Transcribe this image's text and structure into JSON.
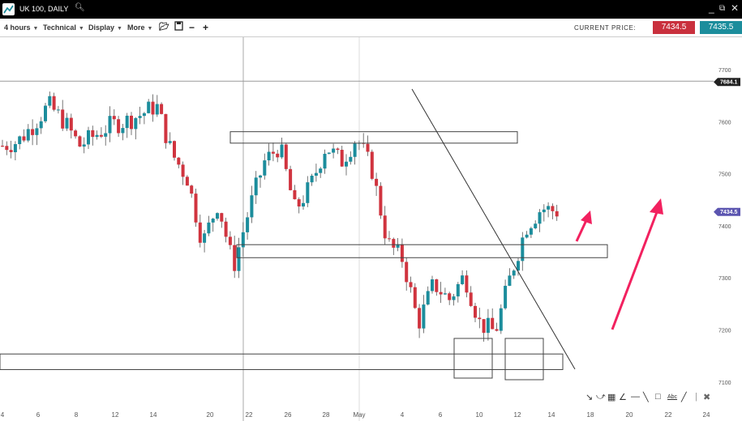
{
  "window": {
    "title": "UK 100, DAILY",
    "search_icon": "magnifier-icon",
    "controls": [
      "minimize-icon",
      "popout-icon",
      "close-icon"
    ]
  },
  "toolbar": {
    "menus": [
      "4 hours",
      "Technical",
      "Display",
      "More"
    ],
    "icons": [
      "open-folder-icon",
      "save-icon",
      "zoom-out-icon",
      "zoom-in-icon"
    ],
    "current_price_label": "CURRENT PRICE:",
    "sell_price": "7434.5",
    "buy_price": "7435.5",
    "sell_color": "#c9303d",
    "buy_color": "#1c8d9c"
  },
  "chart_data": {
    "type": "candlestick",
    "y_ticks": [
      "7700",
      "7600",
      "7500",
      "7400",
      "7300",
      "7200",
      "7100"
    ],
    "ylim": [
      7060,
      7760
    ],
    "x_ticks": [
      "4",
      "6",
      "8",
      "12",
      "14",
      "20",
      "22",
      "26",
      "28",
      "May",
      "4",
      "6",
      "10",
      "12",
      "14",
      "18",
      "20",
      "22",
      "24"
    ],
    "price_tags": [
      {
        "label": "7684.1",
        "value": 7684.1,
        "color": "#222222"
      },
      {
        "label": "7434.5",
        "value": 7434.5,
        "color": "#5b55b0"
      }
    ],
    "close_path": [
      7560,
      7568,
      7600,
      7638,
      7607,
      7560,
      7580,
      7599,
      7607,
      7620,
      7638,
      7545,
      7498,
      7373,
      7451,
      7327,
      7436,
      7529,
      7560,
      7436,
      7482,
      7560,
      7529,
      7576,
      7513,
      7373,
      7342,
      7218,
      7295,
      7264,
      7311,
      7218,
      7202,
      7311,
      7404,
      7440,
      7434
    ],
    "up_color": "#1c8d9c",
    "down_color": "#d0343f",
    "drawings": {
      "horizontal_line": 7684.1,
      "zones": [
        [
          7587,
          7565
        ],
        [
          7370,
          7345
        ],
        [
          7160,
          7130
        ]
      ],
      "arrow_color": "#f2215f"
    }
  },
  "drawing_tools": [
    "pointer-icon",
    "curve-icon",
    "fibonacci-icon",
    "fan-icon",
    "horizontal-line-icon",
    "trend-line-icon",
    "rectangle-icon",
    "text-icon",
    "line-icon",
    "separator",
    "delete-icon"
  ]
}
